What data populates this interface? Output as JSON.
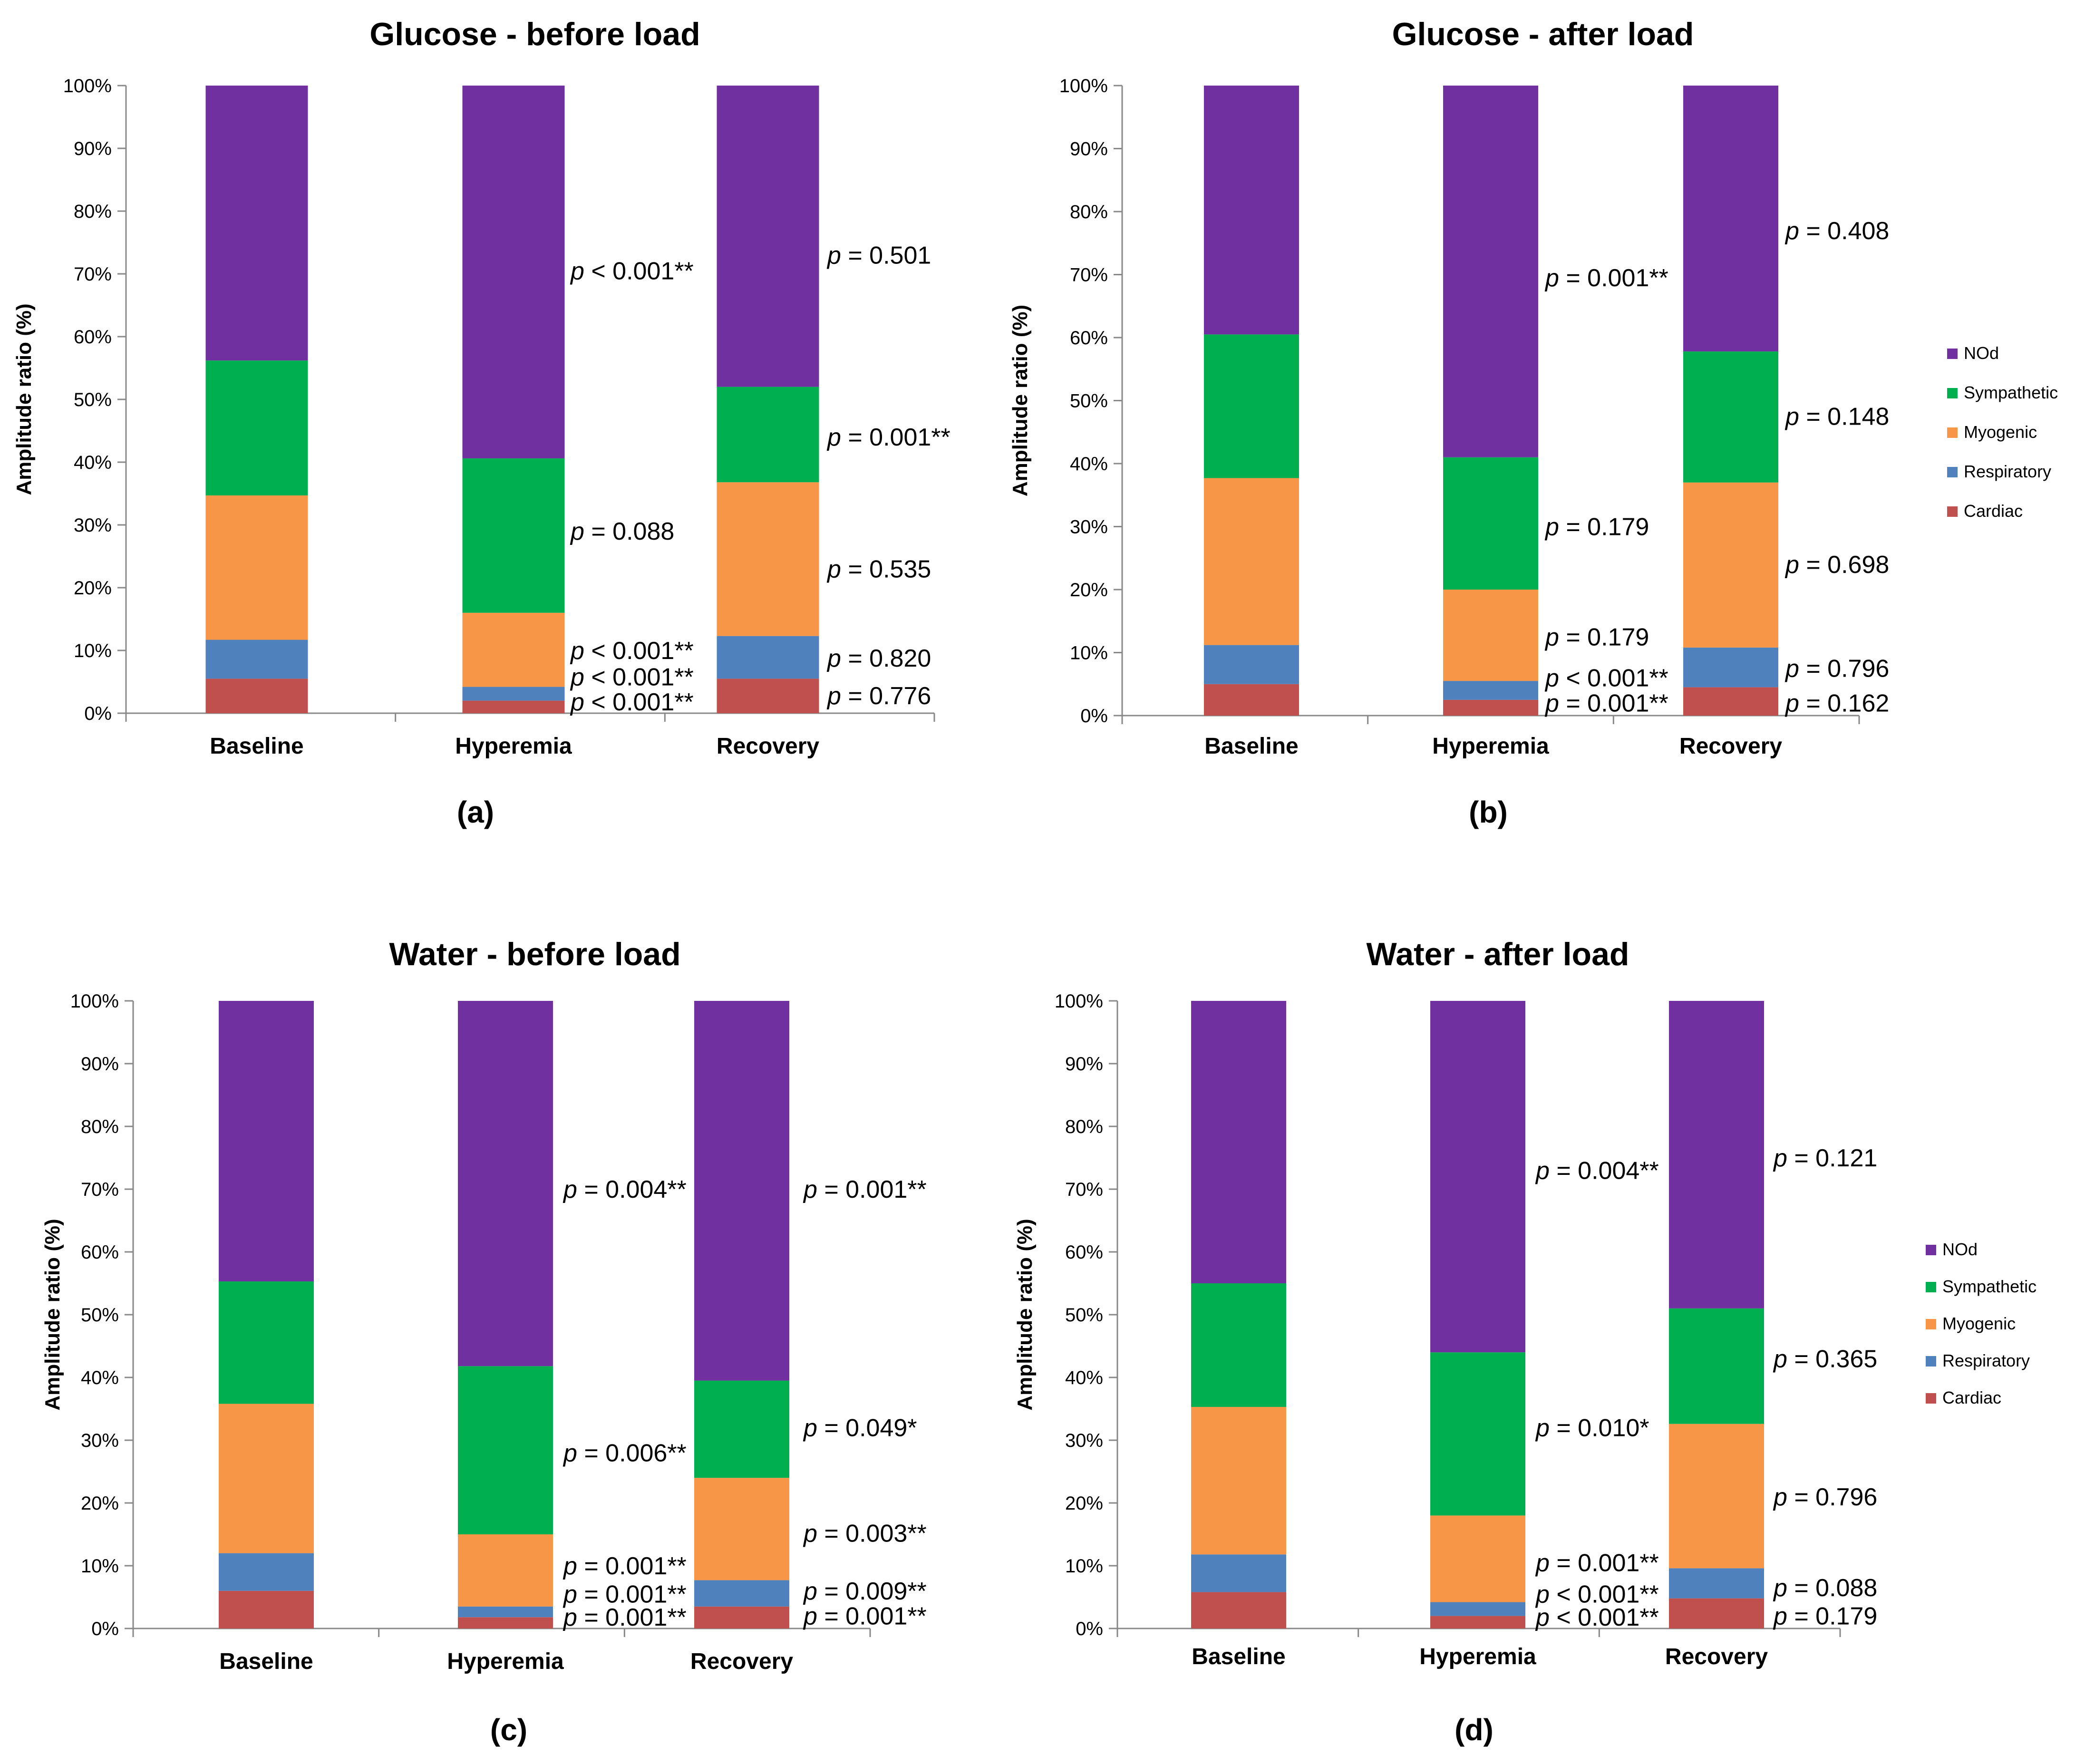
{
  "chart_data": [
    {
      "type": "bar",
      "stacked": true,
      "panel_label": "(a)",
      "title": "Glucose - before load",
      "ylabel": "Amplitude ratio (%)",
      "xlabel": "",
      "ylim": [
        0,
        100
      ],
      "yticks": [
        "0%",
        "10%",
        "20%",
        "30%",
        "40%",
        "50%",
        "60%",
        "70%",
        "80%",
        "90%",
        "100%"
      ],
      "categories": [
        "Baseline",
        "Hyperemia",
        "Recovery"
      ],
      "legend": "none",
      "series": [
        {
          "name": "Cardiac",
          "color": "#c0504d",
          "values": [
            5.5,
            2.0,
            5.5
          ]
        },
        {
          "name": "Respiratory",
          "color": "#4f81bd",
          "values": [
            6.2,
            2.2,
            6.8
          ]
        },
        {
          "name": "Myogenic",
          "color": "#f79646",
          "values": [
            23.0,
            11.8,
            24.5
          ]
        },
        {
          "name": "Sympathetic",
          "color": "#00b050",
          "values": [
            21.5,
            24.6,
            15.2
          ]
        },
        {
          "name": "NOd",
          "color": "#7030a0",
          "values": [
            43.8,
            59.4,
            48.0
          ]
        }
      ],
      "annotations": [
        {
          "category": "Hyperemia",
          "y": 70.5,
          "prefix": "p",
          "text": " < 0.001**"
        },
        {
          "category": "Hyperemia",
          "y": 29.0,
          "prefix": "p",
          "text": " = 0.088"
        },
        {
          "category": "Hyperemia",
          "y": 10.0,
          "prefix": "p",
          "text": " < 0.001**"
        },
        {
          "category": "Hyperemia",
          "y": 5.8,
          "prefix": "p",
          "text": " < 0.001**"
        },
        {
          "category": "Hyperemia",
          "y": 1.8,
          "prefix": "p",
          "text": " < 0.001**"
        },
        {
          "category": "Recovery",
          "y": 73.0,
          "prefix": "p",
          "text": " = 0.501"
        },
        {
          "category": "Recovery",
          "y": 44.0,
          "prefix": "p",
          "text": " = 0.001**"
        },
        {
          "category": "Recovery",
          "y": 23.0,
          "prefix": "p",
          "text": " = 0.535"
        },
        {
          "category": "Recovery",
          "y": 8.8,
          "prefix": "p",
          "text": " = 0.820"
        },
        {
          "category": "Recovery",
          "y": 2.8,
          "prefix": "p",
          "text": " = 0.776"
        }
      ]
    },
    {
      "type": "bar",
      "stacked": true,
      "panel_label": "(b)",
      "title": "Glucose - after load",
      "ylabel": "Amplitude ratio (%)",
      "xlabel": "",
      "ylim": [
        0,
        100
      ],
      "yticks": [
        "0%",
        "10%",
        "20%",
        "30%",
        "40%",
        "50%",
        "60%",
        "70%",
        "80%",
        "90%",
        "100%"
      ],
      "categories": [
        "Baseline",
        "Hyperemia",
        "Recovery"
      ],
      "legend": "right",
      "series": [
        {
          "name": "Cardiac",
          "color": "#c0504d",
          "values": [
            5.0,
            2.5,
            4.5
          ]
        },
        {
          "name": "Respiratory",
          "color": "#4f81bd",
          "values": [
            6.2,
            3.0,
            6.3
          ]
        },
        {
          "name": "Myogenic",
          "color": "#f79646",
          "values": [
            26.5,
            14.5,
            26.2
          ]
        },
        {
          "name": "Sympathetic",
          "color": "#00b050",
          "values": [
            22.8,
            21.0,
            20.8
          ]
        },
        {
          "name": "NOd",
          "color": "#7030a0",
          "values": [
            39.5,
            59.0,
            42.2
          ]
        }
      ],
      "annotations": [
        {
          "category": "Hyperemia",
          "y": 69.5,
          "prefix": "p",
          "text": " = 0.001**"
        },
        {
          "category": "Hyperemia",
          "y": 30.0,
          "prefix": "p",
          "text": " = 0.179"
        },
        {
          "category": "Hyperemia",
          "y": 12.5,
          "prefix": "p",
          "text": " = 0.179"
        },
        {
          "category": "Hyperemia",
          "y": 6.0,
          "prefix": "p",
          "text": " < 0.001**"
        },
        {
          "category": "Hyperemia",
          "y": 2.0,
          "prefix": "p",
          "text": " = 0.001**"
        },
        {
          "category": "Recovery",
          "y": 77.0,
          "prefix": "p",
          "text": " = 0.408"
        },
        {
          "category": "Recovery",
          "y": 47.5,
          "prefix": "p",
          "text": " = 0.148"
        },
        {
          "category": "Recovery",
          "y": 24.0,
          "prefix": "p",
          "text": " = 0.698"
        },
        {
          "category": "Recovery",
          "y": 7.5,
          "prefix": "p",
          "text": " = 0.796"
        },
        {
          "category": "Recovery",
          "y": 2.0,
          "prefix": "p",
          "text": " = 0.162"
        }
      ]
    },
    {
      "type": "bar",
      "stacked": true,
      "panel_label": "(c)",
      "title": "Water - before load",
      "ylabel": "Amplitude ratio (%)",
      "xlabel": "",
      "ylim": [
        0,
        100
      ],
      "yticks": [
        "0%",
        "10%",
        "20%",
        "30%",
        "40%",
        "50%",
        "60%",
        "70%",
        "80%",
        "90%",
        "100%"
      ],
      "categories": [
        "Baseline",
        "Hyperemia",
        "Recovery"
      ],
      "legend": "none",
      "series": [
        {
          "name": "Cardiac",
          "color": "#c0504d",
          "values": [
            6.0,
            1.8,
            3.5
          ]
        },
        {
          "name": "Respiratory",
          "color": "#4f81bd",
          "values": [
            6.0,
            1.7,
            4.2
          ]
        },
        {
          "name": "Myogenic",
          "color": "#f79646",
          "values": [
            23.8,
            11.5,
            16.3
          ]
        },
        {
          "name": "Sympathetic",
          "color": "#00b050",
          "values": [
            19.5,
            26.8,
            15.5
          ]
        },
        {
          "name": "NOd",
          "color": "#7030a0",
          "values": [
            44.7,
            58.2,
            60.5
          ]
        }
      ],
      "annotations": [
        {
          "category": "Hyperemia",
          "y": 70.0,
          "prefix": "p",
          "text": " = 0.004**"
        },
        {
          "category": "Hyperemia",
          "y": 28.0,
          "prefix": "p",
          "text": " = 0.006**"
        },
        {
          "category": "Hyperemia",
          "y": 10.0,
          "prefix": "p",
          "text": " = 0.001**"
        },
        {
          "category": "Hyperemia",
          "y": 5.5,
          "prefix": "p",
          "text": " = 0.001**"
        },
        {
          "category": "Hyperemia",
          "y": 1.8,
          "prefix": "p",
          "text": " = 0.001**"
        },
        {
          "category": "Recovery",
          "y": 70.0,
          "prefix": "p",
          "text": " = 0.001**"
        },
        {
          "category": "Recovery",
          "y": 32.0,
          "prefix": "p",
          "text": " = 0.049*"
        },
        {
          "category": "Recovery",
          "y": 15.2,
          "prefix": "p",
          "text": " = 0.003**"
        },
        {
          "category": "Recovery",
          "y": 6.0,
          "prefix": "p",
          "text": " = 0.009**"
        },
        {
          "category": "Recovery",
          "y": 2.0,
          "prefix": "p",
          "text": " = 0.001**"
        }
      ]
    },
    {
      "type": "bar",
      "stacked": true,
      "panel_label": "(d)",
      "title": "Water - after load",
      "ylabel": "Amplitude ratio (%)",
      "xlabel": "",
      "ylim": [
        0,
        100
      ],
      "yticks": [
        "0%",
        "10%",
        "20%",
        "30%",
        "40%",
        "50%",
        "60%",
        "70%",
        "80%",
        "90%",
        "100%"
      ],
      "categories": [
        "Baseline",
        "Hyperemia",
        "Recovery"
      ],
      "legend": "right",
      "series": [
        {
          "name": "Cardiac",
          "color": "#c0504d",
          "values": [
            5.8,
            2.0,
            4.8
          ]
        },
        {
          "name": "Respiratory",
          "color": "#4f81bd",
          "values": [
            6.0,
            2.2,
            4.8
          ]
        },
        {
          "name": "Myogenic",
          "color": "#f79646",
          "values": [
            23.5,
            13.8,
            23.0
          ]
        },
        {
          "name": "Sympathetic",
          "color": "#00b050",
          "values": [
            19.7,
            26.0,
            18.4
          ]
        },
        {
          "name": "NOd",
          "color": "#7030a0",
          "values": [
            45.0,
            56.0,
            49.0
          ]
        }
      ],
      "annotations": [
        {
          "category": "Hyperemia",
          "y": 73.0,
          "prefix": "p",
          "text": " = 0.004**"
        },
        {
          "category": "Hyperemia",
          "y": 32.0,
          "prefix": "p",
          "text": " = 0.010*"
        },
        {
          "category": "Hyperemia",
          "y": 10.5,
          "prefix": "p",
          "text": " = 0.001**"
        },
        {
          "category": "Hyperemia",
          "y": 5.5,
          "prefix": "p",
          "text": " < 0.001**"
        },
        {
          "category": "Hyperemia",
          "y": 1.8,
          "prefix": "p",
          "text": " < 0.001**"
        },
        {
          "category": "Recovery",
          "y": 75.0,
          "prefix": "p",
          "text": " = 0.121"
        },
        {
          "category": "Recovery",
          "y": 43.0,
          "prefix": "p",
          "text": " = 0.365"
        },
        {
          "category": "Recovery",
          "y": 21.0,
          "prefix": "p",
          "text": " = 0.796"
        },
        {
          "category": "Recovery",
          "y": 6.5,
          "prefix": "p",
          "text": " = 0.088"
        },
        {
          "category": "Recovery",
          "y": 2.0,
          "prefix": "p",
          "text": " = 0.179"
        }
      ]
    }
  ]
}
